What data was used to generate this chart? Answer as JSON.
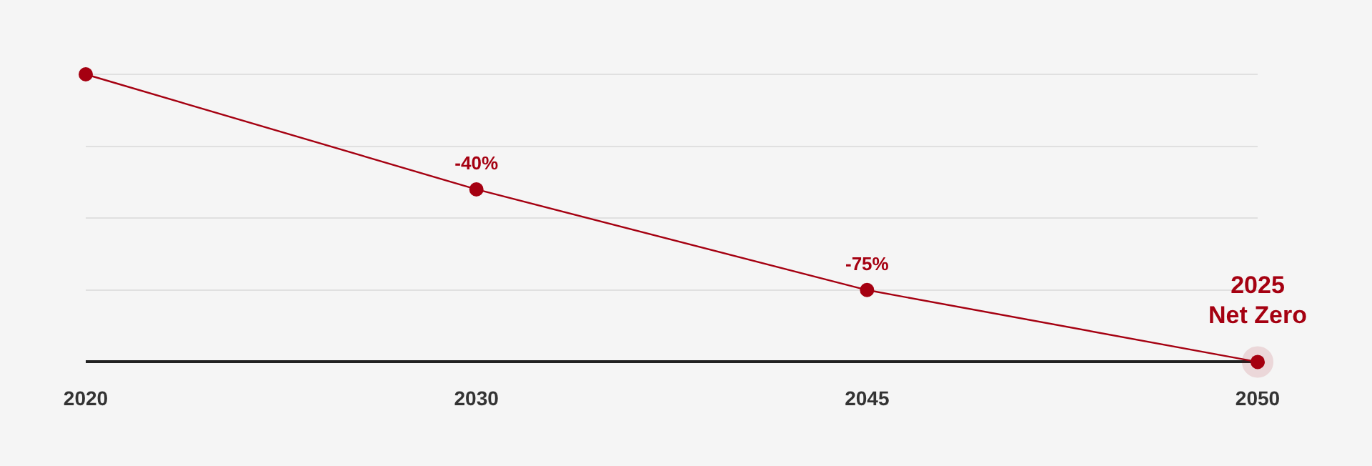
{
  "chart_data": {
    "type": "line",
    "categories": [
      "2020",
      "2030",
      "2045",
      "2050"
    ],
    "series": [
      {
        "color": "#a50011",
        "values": [
          0,
          -40,
          -75,
          -100
        ],
        "value_labels": [
          null,
          "-40%",
          "-75%",
          null
        ]
      }
    ],
    "annotations": [
      {
        "text": "2025 Net Zero",
        "x": "2050",
        "y": -100
      }
    ],
    "ylim": [
      -100,
      0
    ],
    "yticks": [
      {
        "value": -100,
        "label": null
      },
      {
        "value": -75,
        "label": null
      },
      {
        "value": -50,
        "label": null
      },
      {
        "value": -25,
        "label": null
      },
      {
        "value": 0,
        "label": null
      }
    ],
    "tick_labels": "x",
    "grid": "y",
    "marker": "circle",
    "line_style": "solid",
    "legend": false
  }
}
